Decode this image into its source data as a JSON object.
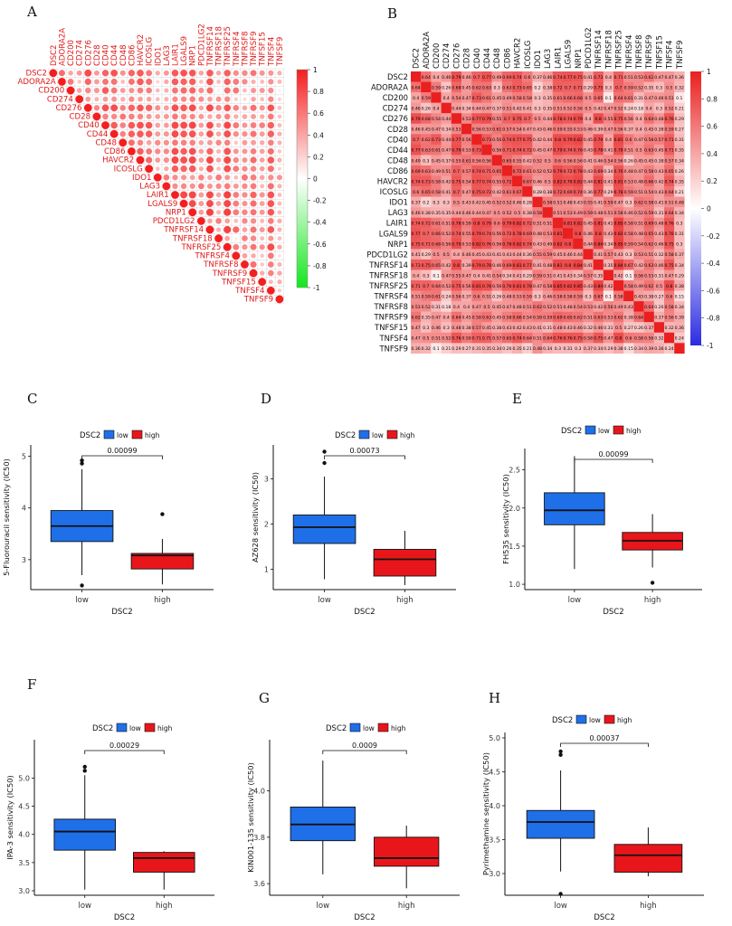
{
  "panel_letters": {
    "A": "A",
    "B": "B",
    "C": "C",
    "D": "D",
    "E": "E",
    "F": "F",
    "G": "G",
    "H": "H"
  },
  "chart_data": [
    {
      "id": "A",
      "type": "heatmap",
      "style": "circle-upper-triangle",
      "genes": [
        "DSC2",
        "ADORA2A",
        "CD200",
        "CD274",
        "CD276",
        "CD28",
        "CD40",
        "CD44",
        "CD48",
        "CD86",
        "HAVCR2",
        "ICOSLG",
        "IDO1",
        "LAG3",
        "LAIR1",
        "LGALS9",
        "NRP1",
        "PDCD1LG2",
        "TNFRSF14",
        "TNFRSF18",
        "TNFRSF25",
        "TNFRSF4",
        "TNFRSF8",
        "TNFRSF9",
        "TNFSF15",
        "TNFSF4",
        "TNFSF9"
      ],
      "values": [
        [
          1,
          0.64,
          0.4,
          0.46,
          0.79,
          0.46,
          0.7,
          0.77,
          0.49,
          0.69,
          0.74,
          0.6,
          0.37,
          0.46,
          0.74,
          0.77,
          0.75,
          0.41,
          0.73,
          0.4,
          0.71,
          0.51,
          0.53,
          0.62,
          0.47,
          0.47,
          0.36
        ],
        [
          0.64,
          1,
          0.59,
          0.26,
          0.68,
          0.45,
          0.62,
          0.63,
          0.3,
          0.63,
          0.73,
          0.65,
          0.2,
          0.38,
          0.72,
          0.7,
          0.71,
          0.29,
          0.75,
          0.3,
          0.7,
          0.59,
          0.52,
          0.35,
          0.3,
          0.5,
          0.32
        ],
        [
          0.4,
          0.59,
          1,
          0.4,
          0.54,
          0.47,
          0.73,
          0.61,
          0.45,
          0.49,
          0.58,
          0.58,
          0.3,
          0.35,
          0.61,
          0.66,
          0.68,
          0.5,
          0.65,
          0.1,
          0.64,
          0.61,
          0.31,
          0.47,
          0.46,
          0.51,
          0.1
        ],
        [
          0.46,
          0.26,
          0.4,
          1,
          0.44,
          0.34,
          0.44,
          0.47,
          0.37,
          0.51,
          0.42,
          0.41,
          0.3,
          0.35,
          0.51,
          0.52,
          0.56,
          0.5,
          0.42,
          0.47,
          0.52,
          0.24,
          0.18,
          0.4,
          0.3,
          0.52,
          0.21
        ],
        [
          0.79,
          0.68,
          0.54,
          0.44,
          1,
          0.53,
          0.77,
          0.79,
          0.55,
          0.7,
          0.75,
          0.7,
          0.5,
          0.44,
          0.78,
          0.74,
          0.79,
          0.4,
          0.8,
          0.55,
          0.75,
          0.56,
          0.4,
          0.64,
          0.48,
          0.76,
          0.29
        ],
        [
          0.46,
          0.45,
          0.47,
          0.34,
          0.53,
          1,
          0.56,
          0.53,
          0.61,
          0.57,
          0.54,
          0.47,
          0.43,
          0.46,
          0.59,
          0.55,
          0.53,
          0.46,
          0.39,
          0.47,
          0.56,
          0.37,
          0.4,
          0.45,
          0.38,
          0.59,
          0.27
        ],
        [
          0.7,
          0.62,
          0.73,
          0.44,
          0.77,
          0.56,
          1,
          0.73,
          0.56,
          0.74,
          0.77,
          0.75,
          0.42,
          0.44,
          0.8,
          0.79,
          0.82,
          0.45,
          0.79,
          0.4,
          0.81,
          0.6,
          0.47,
          0.58,
          0.57,
          0.71,
          0.31
        ],
        [
          0.77,
          0.63,
          0.61,
          0.47,
          0.79,
          0.53,
          0.73,
          1,
          0.56,
          0.71,
          0.74,
          0.72,
          0.45,
          0.47,
          0.79,
          0.74,
          0.76,
          0.43,
          0.78,
          0.41,
          0.78,
          0.51,
          0.5,
          0.63,
          0.45,
          0.71,
          0.35
        ],
        [
          0.49,
          0.3,
          0.45,
          0.37,
          0.55,
          0.61,
          0.56,
          0.56,
          1,
          0.65,
          0.55,
          0.42,
          0.52,
          0.5,
          0.6,
          0.56,
          0.56,
          0.41,
          0.46,
          0.54,
          0.56,
          0.26,
          0.45,
          0.45,
          0.38,
          0.57,
          0.34
        ],
        [
          0.69,
          0.63,
          0.49,
          0.51,
          0.7,
          0.57,
          0.74,
          0.71,
          0.65,
          1,
          0.72,
          0.61,
          0.52,
          0.52,
          0.79,
          0.72,
          0.78,
          0.43,
          0.69,
          0.34,
          0.76,
          0.48,
          0.47,
          0.58,
          0.43,
          0.65,
          0.26
        ],
        [
          0.74,
          0.73,
          0.58,
          0.42,
          0.75,
          0.54,
          0.77,
          0.74,
          0.55,
          0.72,
          1,
          0.67,
          0.46,
          0.5,
          0.82,
          0.78,
          0.82,
          0.44,
          0.81,
          0.41,
          0.81,
          0.53,
          0.48,
          0.66,
          0.42,
          0.74,
          0.35
        ],
        [
          0.6,
          0.65,
          0.58,
          0.41,
          0.7,
          0.47,
          0.75,
          0.72,
          0.42,
          0.61,
          0.67,
          1,
          0.28,
          0.38,
          0.72,
          0.69,
          0.74,
          0.36,
          0.77,
          0.29,
          0.78,
          0.59,
          0.51,
          0.54,
          0.43,
          0.64,
          0.21
        ],
        [
          0.37,
          0.2,
          0.3,
          0.3,
          0.5,
          0.43,
          0.42,
          0.45,
          0.52,
          0.52,
          0.46,
          0.28,
          1,
          0.58,
          0.51,
          0.48,
          0.43,
          0.55,
          0.41,
          0.59,
          0.47,
          0.3,
          0.62,
          0.58,
          0.41,
          0.51,
          0.48
        ],
        [
          0.46,
          0.38,
          0.35,
          0.35,
          0.44,
          0.46,
          0.44,
          0.47,
          0.5,
          0.52,
          0.5,
          0.38,
          0.58,
          1,
          0.51,
          0.53,
          0.49,
          0.59,
          0.48,
          0.51,
          0.58,
          0.46,
          0.52,
          0.59,
          0.31,
          0.64,
          0.34
        ],
        [
          0.74,
          0.72,
          0.61,
          0.51,
          0.78,
          0.59,
          0.8,
          0.79,
          0.6,
          0.79,
          0.82,
          0.72,
          0.51,
          0.51,
          1,
          0.81,
          0.82,
          0.45,
          0.81,
          0.41,
          0.85,
          0.58,
          0.51,
          0.69,
          0.48,
          0.76,
          0.3
        ],
        [
          0.77,
          0.7,
          0.66,
          0.52,
          0.74,
          0.55,
          0.79,
          0.74,
          0.56,
          0.72,
          0.78,
          0.69,
          0.48,
          0.53,
          0.81,
          1,
          0.8,
          0.46,
          0.8,
          0.43,
          0.82,
          0.58,
          0.48,
          0.65,
          0.43,
          0.76,
          0.31
        ],
        [
          0.75,
          0.71,
          0.68,
          0.56,
          0.79,
          0.53,
          0.82,
          0.76,
          0.56,
          0.78,
          0.82,
          0.74,
          0.43,
          0.49,
          0.82,
          0.8,
          1,
          0.44,
          0.84,
          0.34,
          0.85,
          0.59,
          0.54,
          0.62,
          0.46,
          0.75,
          0.3
        ],
        [
          0.41,
          0.29,
          0.5,
          0.5,
          0.4,
          0.46,
          0.45,
          0.43,
          0.41,
          0.43,
          0.44,
          0.36,
          0.55,
          0.59,
          0.45,
          0.46,
          0.44,
          1,
          0.41,
          0.57,
          0.43,
          0.3,
          0.53,
          0.51,
          0.32,
          0.58,
          0.37
        ],
        [
          0.73,
          0.75,
          0.65,
          0.42,
          0.8,
          0.39,
          0.79,
          0.78,
          0.46,
          0.69,
          0.81,
          0.77,
          0.41,
          0.48,
          0.81,
          0.8,
          0.84,
          0.41,
          1,
          0.35,
          0.84,
          0.67,
          0.42,
          0.63,
          0.46,
          0.75,
          0.34
        ],
        [
          0.4,
          0.3,
          0.1,
          0.47,
          0.55,
          0.47,
          0.4,
          0.41,
          0.54,
          0.34,
          0.41,
          0.29,
          0.59,
          0.51,
          0.41,
          0.43,
          0.34,
          0.57,
          0.35,
          1,
          0.42,
          0.1,
          0.56,
          0.53,
          0.31,
          0.47,
          0.29
        ],
        [
          0.71,
          0.7,
          0.64,
          0.52,
          0.75,
          0.56,
          0.81,
          0.78,
          0.56,
          0.76,
          0.81,
          0.78,
          0.47,
          0.58,
          0.85,
          0.82,
          0.85,
          0.43,
          0.84,
          0.42,
          1,
          0.58,
          0.49,
          0.62,
          0.5,
          0.8,
          0.38
        ],
        [
          0.51,
          0.59,
          0.61,
          0.24,
          0.56,
          0.37,
          0.6,
          0.51,
          0.26,
          0.48,
          0.53,
          0.59,
          0.3,
          0.46,
          0.58,
          0.58,
          0.59,
          0.3,
          0.67,
          0.1,
          0.58,
          1,
          0.43,
          0.38,
          0.27,
          0.6,
          0.15
        ],
        [
          0.53,
          0.52,
          0.31,
          0.18,
          0.4,
          0.4,
          0.47,
          0.5,
          0.45,
          0.47,
          0.48,
          0.51,
          0.62,
          0.52,
          0.51,
          0.48,
          0.54,
          0.53,
          0.42,
          0.56,
          0.49,
          0.43,
          1,
          0.64,
          0.26,
          0.58,
          0.34
        ],
        [
          0.62,
          0.35,
          0.47,
          0.4,
          0.64,
          0.45,
          0.58,
          0.63,
          0.45,
          0.58,
          0.66,
          0.54,
          0.58,
          0.59,
          0.69,
          0.65,
          0.62,
          0.51,
          0.63,
          0.53,
          0.62,
          0.38,
          0.64,
          1,
          0.37,
          0.56,
          0.39
        ],
        [
          0.47,
          0.3,
          0.46,
          0.3,
          0.48,
          0.38,
          0.57,
          0.45,
          0.38,
          0.43,
          0.42,
          0.43,
          0.41,
          0.31,
          0.48,
          0.43,
          0.46,
          0.32,
          0.46,
          0.31,
          0.5,
          0.27,
          0.26,
          0.37,
          1,
          0.32,
          0.36
        ],
        [
          0.47,
          0.5,
          0.51,
          0.52,
          0.76,
          0.59,
          0.71,
          0.71,
          0.57,
          0.65,
          0.74,
          0.64,
          0.51,
          0.64,
          0.76,
          0.76,
          0.75,
          0.58,
          0.75,
          0.47,
          0.8,
          0.6,
          0.58,
          0.56,
          0.32,
          1,
          0.24
        ],
        [
          0.36,
          0.32,
          0.1,
          0.21,
          0.29,
          0.27,
          0.31,
          0.35,
          0.34,
          0.26,
          0.35,
          0.21,
          0.48,
          0.34,
          0.3,
          0.31,
          0.3,
          0.37,
          0.34,
          0.29,
          0.38,
          0.15,
          0.34,
          0.39,
          0.36,
          0.24,
          1
        ]
      ],
      "colorbar_ticks": [
        1,
        0.8,
        0.6,
        0.4,
        0.2,
        0,
        -0.2,
        -0.4,
        -0.6,
        -0.8,
        -1
      ],
      "colors": {
        "high": "#f51e1e",
        "mid": "#ffffff",
        "low": "#14e61e"
      }
    },
    {
      "id": "B",
      "type": "heatmap",
      "style": "square-with-labels",
      "genes": [
        "DSC2",
        "ADORA2A",
        "CD200",
        "CD274",
        "CD276",
        "CD28",
        "CD40",
        "CD44",
        "CD48",
        "CD86",
        "HAVCR2",
        "ICOSLG",
        "IDO1",
        "LAG3",
        "LAIR1",
        "LGALS9",
        "NRP1",
        "PDCD1LG2",
        "TNFRSF14",
        "TNFRSF18",
        "TNFRSF25",
        "TNFRSF4",
        "TNFRSF8",
        "TNFRSF9",
        "TNFSF15",
        "TNFSF4",
        "TNFSF9"
      ],
      "colorbar_ticks": [
        1,
        0.8,
        0.6,
        0.4,
        0.2,
        0,
        -0.2,
        -0.4,
        -0.6,
        -0.8,
        -1
      ],
      "colors": {
        "high": "#ea1f1f",
        "mid": "#ffffff",
        "low": "#2b2be2"
      }
    },
    {
      "id": "C",
      "type": "boxplot",
      "title_legend": "DSC2",
      "legend": [
        "low",
        "high"
      ],
      "categories": [
        "low",
        "high"
      ],
      "xlabel": "DSC2",
      "ylabel": "5-Fluorouracil sensitivity (IC50)",
      "ylim": [
        2.42,
        5.22
      ],
      "yticks": [
        3,
        4,
        5
      ],
      "pvalue": "0.00099",
      "boxes": [
        {
          "name": "low",
          "min": 2.7,
          "q1": 3.35,
          "median": 3.65,
          "q3": 3.95,
          "max": 4.75,
          "outliers": [
            4.86,
            4.92,
            2.5
          ]
        },
        {
          "name": "high",
          "min": 2.52,
          "q1": 2.82,
          "median": 3.08,
          "q3": 3.12,
          "max": 3.4,
          "outliers": [
            3.88
          ]
        }
      ]
    },
    {
      "id": "D",
      "type": "boxplot",
      "title_legend": "DSC2",
      "legend": [
        "low",
        "high"
      ],
      "categories": [
        "low",
        "high"
      ],
      "xlabel": "DSC2",
      "ylabel": "AZ628 sensitivity (IC50)",
      "ylim": [
        0.55,
        3.75
      ],
      "yticks": [
        1,
        2,
        3
      ],
      "pvalue": "0.00073",
      "boxes": [
        {
          "name": "low",
          "min": 0.78,
          "q1": 1.57,
          "median": 1.93,
          "q3": 2.2,
          "max": 3.05,
          "outliers": [
            3.35,
            3.6
          ]
        },
        {
          "name": "high",
          "min": 0.65,
          "q1": 0.85,
          "median": 1.22,
          "q3": 1.44,
          "max": 1.85,
          "outliers": []
        }
      ]
    },
    {
      "id": "E",
      "type": "boxplot",
      "title_legend": "DSC2",
      "legend": [
        "low",
        "high"
      ],
      "categories": [
        "low",
        "high"
      ],
      "xlabel": "DSC2",
      "ylabel": "FH535 sensitivity (IC50)",
      "ylim": [
        0.93,
        2.78
      ],
      "yticks": [
        1.0,
        1.5,
        2.0,
        2.5
      ],
      "pvalue": "0.00099",
      "boxes": [
        {
          "name": "low",
          "min": 1.2,
          "q1": 1.78,
          "median": 1.97,
          "q3": 2.2,
          "max": 2.68,
          "outliers": []
        },
        {
          "name": "high",
          "min": 1.22,
          "q1": 1.45,
          "median": 1.57,
          "q3": 1.68,
          "max": 1.92,
          "outliers": [
            1.02
          ]
        }
      ]
    },
    {
      "id": "F",
      "type": "boxplot",
      "title_legend": "DSC2",
      "legend": [
        "low",
        "high"
      ],
      "categories": [
        "low",
        "high"
      ],
      "xlabel": "DSC2",
      "ylabel": "IPA-3 sensitivity (IC50)",
      "ylim": [
        2.92,
        5.68
      ],
      "yticks": [
        3.0,
        3.5,
        4.0,
        4.5,
        5.0
      ],
      "pvalue": "0.00029",
      "boxes": [
        {
          "name": "low",
          "min": 3.02,
          "q1": 3.72,
          "median": 4.05,
          "q3": 4.27,
          "max": 5.05,
          "outliers": [
            5.13,
            5.2
          ]
        },
        {
          "name": "high",
          "min": 3.02,
          "q1": 3.33,
          "median": 3.58,
          "q3": 3.68,
          "max": 3.7,
          "outliers": []
        }
      ]
    },
    {
      "id": "G",
      "type": "boxplot",
      "title_legend": "DSC2",
      "legend": [
        "low",
        "high"
      ],
      "categories": [
        "low",
        "high"
      ],
      "xlabel": "DSC2",
      "ylabel": "KIN001-135 sensitivity (IC50)",
      "ylim": [
        3.55,
        4.22
      ],
      "yticks": [
        3.6,
        3.8,
        4.0
      ],
      "pvalue": "0.0009",
      "boxes": [
        {
          "name": "low",
          "min": 3.64,
          "q1": 3.785,
          "median": 3.855,
          "q3": 3.93,
          "max": 4.13,
          "outliers": []
        },
        {
          "name": "high",
          "min": 3.58,
          "q1": 3.675,
          "median": 3.71,
          "q3": 3.8,
          "max": 3.85,
          "outliers": []
        }
      ]
    },
    {
      "id": "H",
      "type": "boxplot",
      "title_legend": "DSC2",
      "legend": [
        "low",
        "high"
      ],
      "categories": [
        "low",
        "high"
      ],
      "xlabel": "DSC2",
      "ylabel": "Pyrimethamine sensitivity (IC50)",
      "ylim": [
        2.68,
        5.08
      ],
      "yticks": [
        3.0,
        3.5,
        4.0,
        4.5,
        5.0
      ],
      "pvalue": "0.00037",
      "boxes": [
        {
          "name": "low",
          "min": 3.03,
          "q1": 3.52,
          "median": 3.76,
          "q3": 3.93,
          "max": 4.52,
          "outliers": [
            4.75,
            4.8,
            2.7
          ]
        },
        {
          "name": "high",
          "min": 2.96,
          "q1": 3.02,
          "median": 3.27,
          "q3": 3.43,
          "max": 3.68,
          "outliers": []
        }
      ]
    }
  ],
  "colors": {
    "low_fill": "#1f6fe8",
    "high_fill": "#e8161b",
    "heat_text": "#000000"
  }
}
